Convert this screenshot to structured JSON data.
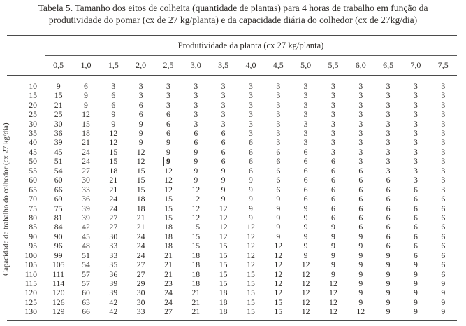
{
  "title": {
    "line1": "Tabela 5. Tamanho dos eitos de colheita (quantidade de plantas) para 4 horas de trabalho em função da",
    "line2": "produtividade do pomar (cx de 27 kg/planta) e da capacidade diária do colhedor (cx de 27kg/dia)"
  },
  "table": {
    "col_group_header": "Produtividade da planta (cx 27 kg/planta)",
    "row_group_header": "Capacidade de trabalho do colhedor (cx 27 kg/dia)",
    "col_headers": [
      "0,5",
      "1,0",
      "1,5",
      "2,0",
      "2,5",
      "3,0",
      "3,5",
      "4,0",
      "4,5",
      "5,0",
      "5,5",
      "6,0",
      "6,5",
      "7,0",
      "7,5"
    ],
    "rows": [
      {
        "label": "10",
        "values": [
          9,
          6,
          3,
          3,
          3,
          3,
          3,
          3,
          3,
          3,
          3,
          3,
          3,
          3,
          3
        ]
      },
      {
        "label": "15",
        "values": [
          15,
          9,
          6,
          3,
          3,
          3,
          3,
          3,
          3,
          3,
          3,
          3,
          3,
          3,
          3
        ]
      },
      {
        "label": "20",
        "values": [
          21,
          9,
          6,
          6,
          3,
          3,
          3,
          3,
          3,
          3,
          3,
          3,
          3,
          3,
          3
        ]
      },
      {
        "label": "25",
        "values": [
          25,
          12,
          9,
          6,
          6,
          3,
          3,
          3,
          3,
          3,
          3,
          3,
          3,
          3,
          3
        ]
      },
      {
        "label": "30",
        "values": [
          30,
          15,
          9,
          9,
          6,
          3,
          3,
          3,
          3,
          3,
          3,
          3,
          3,
          3,
          3
        ]
      },
      {
        "label": "35",
        "values": [
          36,
          18,
          12,
          9,
          6,
          6,
          6,
          3,
          3,
          3,
          3,
          3,
          3,
          3,
          3
        ]
      },
      {
        "label": "40",
        "values": [
          39,
          21,
          12,
          9,
          9,
          6,
          6,
          6,
          3,
          3,
          3,
          3,
          3,
          3,
          3
        ]
      },
      {
        "label": "45",
        "values": [
          45,
          24,
          15,
          12,
          9,
          9,
          6,
          6,
          6,
          6,
          3,
          3,
          3,
          3,
          3
        ]
      },
      {
        "label": "50",
        "values": [
          51,
          24,
          15,
          12,
          9,
          9,
          6,
          6,
          6,
          6,
          6,
          3,
          3,
          3,
          3
        ]
      },
      {
        "label": "55",
        "values": [
          54,
          27,
          18,
          15,
          12,
          9,
          9,
          6,
          6,
          6,
          6,
          6,
          3,
          3,
          3
        ]
      },
      {
        "label": "60",
        "values": [
          60,
          30,
          21,
          15,
          12,
          9,
          9,
          9,
          6,
          6,
          6,
          6,
          6,
          3,
          3
        ]
      },
      {
        "label": "65",
        "values": [
          66,
          33,
          21,
          15,
          12,
          12,
          9,
          9,
          6,
          6,
          6,
          6,
          6,
          6,
          3
        ]
      },
      {
        "label": "70",
        "values": [
          69,
          36,
          24,
          18,
          15,
          12,
          9,
          9,
          9,
          6,
          6,
          6,
          6,
          6,
          6
        ]
      },
      {
        "label": "75",
        "values": [
          75,
          39,
          24,
          18,
          15,
          12,
          12,
          9,
          9,
          9,
          6,
          6,
          6,
          6,
          6
        ]
      },
      {
        "label": "80",
        "values": [
          81,
          39,
          27,
          21,
          15,
          12,
          12,
          9,
          9,
          9,
          6,
          6,
          6,
          6,
          6
        ]
      },
      {
        "label": "85",
        "values": [
          84,
          42,
          27,
          21,
          18,
          15,
          12,
          12,
          9,
          9,
          9,
          6,
          6,
          6,
          6
        ]
      },
      {
        "label": "90",
        "values": [
          90,
          45,
          30,
          24,
          18,
          15,
          12,
          12,
          9,
          9,
          9,
          9,
          6,
          6,
          6
        ]
      },
      {
        "label": "95",
        "values": [
          96,
          48,
          33,
          24,
          18,
          15,
          15,
          12,
          12,
          9,
          9,
          9,
          6,
          6,
          6
        ]
      },
      {
        "label": "100",
        "values": [
          99,
          51,
          33,
          24,
          21,
          18,
          15,
          12,
          12,
          9,
          9,
          9,
          9,
          6,
          6
        ]
      },
      {
        "label": "105",
        "values": [
          105,
          54,
          35,
          27,
          21,
          18,
          15,
          12,
          12,
          12,
          9,
          9,
          9,
          9,
          6
        ]
      },
      {
        "label": "110",
        "values": [
          111,
          57,
          36,
          27,
          21,
          18,
          15,
          15,
          12,
          12,
          9,
          9,
          9,
          9,
          6
        ]
      },
      {
        "label": "115",
        "values": [
          114,
          57,
          39,
          29,
          23,
          18,
          15,
          15,
          12,
          12,
          12,
          9,
          9,
          9,
          9
        ]
      },
      {
        "label": "120",
        "values": [
          120,
          60,
          39,
          30,
          24,
          21,
          18,
          15,
          12,
          12,
          12,
          9,
          9,
          9,
          9
        ]
      },
      {
        "label": "125",
        "values": [
          126,
          63,
          42,
          30,
          24,
          21,
          18,
          15,
          15,
          12,
          12,
          9,
          9,
          9,
          9
        ]
      },
      {
        "label": "130",
        "values": [
          129,
          66,
          42,
          33,
          27,
          21,
          18,
          15,
          15,
          12,
          12,
          12,
          9,
          9,
          9
        ]
      }
    ],
    "highlighted_cell": {
      "row_label": "50",
      "col_header": "2,5",
      "value": 9
    }
  },
  "colors": {
    "text": "#2e2b28",
    "rule": "#4b4b4b",
    "background": "#ffffff"
  }
}
